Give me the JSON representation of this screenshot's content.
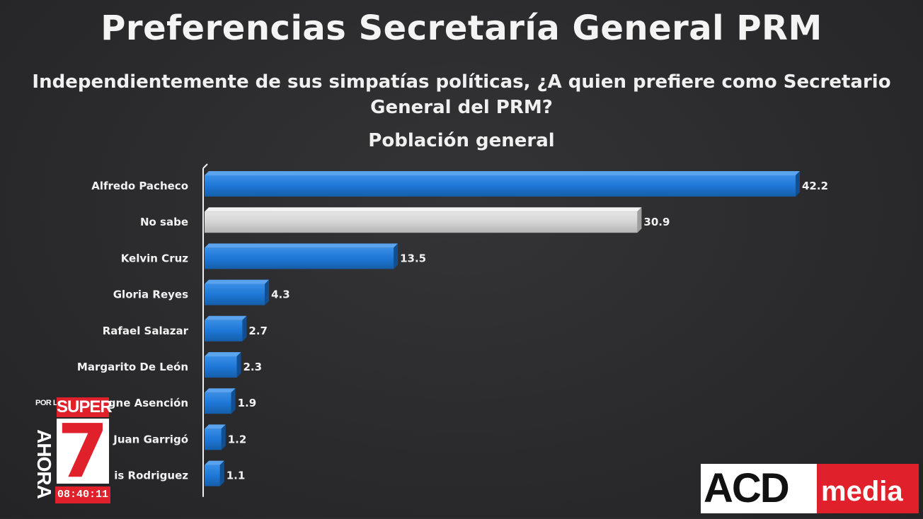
{
  "header": {
    "title": "Preferencias Secretaría General PRM",
    "question_line1": "Independientemente de sus simpatías políticas, ¿A quien prefiere como Secretario",
    "question_line2": "General del PRM?",
    "population": "Población general"
  },
  "chart_data": {
    "type": "bar",
    "orientation": "horizontal",
    "title": "Preferencias Secretaría General PRM",
    "categories": [
      "Alfredo Pacheco",
      "No sabe",
      "Kelvin Cruz",
      "Gloria Reyes",
      "Rafael Salazar",
      "Margarito De León",
      "gne Asención",
      "Juan Garrigó",
      "is Rodriguez"
    ],
    "values": [
      42.2,
      30.9,
      13.5,
      4.3,
      2.7,
      2.3,
      1.9,
      1.2,
      1.1
    ],
    "value_labels": [
      "42.2",
      "30.9",
      "13.5",
      "4.3",
      "2.7",
      "2.3",
      "1.9",
      "1.2",
      "1.1"
    ],
    "bar_colors": [
      "#1e77d6",
      "#d4d4d4",
      "#1e77d6",
      "#1e77d6",
      "#1e77d6",
      "#1e77d6",
      "#1e77d6",
      "#1e77d6",
      "#1e77d6"
    ],
    "xlim": [
      0,
      42.2
    ],
    "grid": false,
    "legend": "none"
  },
  "logos": {
    "super7_por_la": "POR LA",
    "super7_ahora": "AHORA",
    "super7_super": "SUPER",
    "super7_seven": "7",
    "clock": "08:40:11",
    "acd": "ACD",
    "media": "media"
  },
  "colors": {
    "background": "#2b2b2d",
    "bar_blue": "#1e77d6",
    "bar_gray": "#d4d4d4",
    "brand_red": "#e0202a"
  }
}
